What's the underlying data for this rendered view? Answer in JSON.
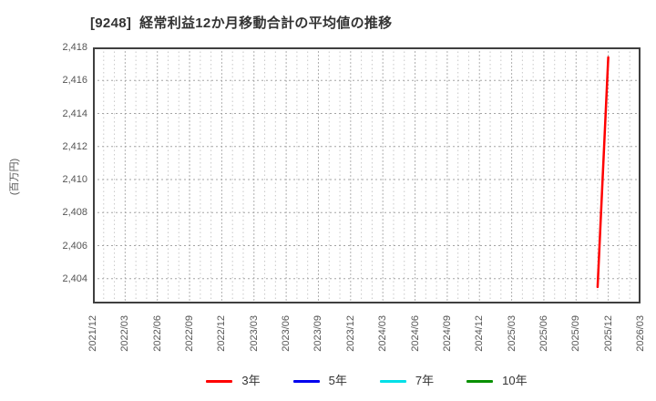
{
  "title": "[9248]  経常利益12か月移動合計の平均値の推移",
  "chart_data": {
    "type": "line",
    "title": "[9248]  経常利益12か月移動合計の平均値の推移",
    "xlabel": "",
    "ylabel": "(百万円)",
    "ylim": [
      2402.5,
      2418
    ],
    "y_ticks": [
      2404,
      2406,
      2408,
      2410,
      2412,
      2414,
      2416,
      2418
    ],
    "y_tick_labels": [
      "2,404",
      "2,406",
      "2,408",
      "2,410",
      "2,412",
      "2,414",
      "2,416",
      "2,418"
    ],
    "x_tick_labels": [
      "2021/12",
      "2022/03",
      "2022/06",
      "2022/09",
      "2022/12",
      "2023/03",
      "2023/06",
      "2023/09",
      "2023/12",
      "2024/03",
      "2024/06",
      "2024/09",
      "2024/12",
      "2025/03",
      "2025/06",
      "2025/09",
      "2025/12",
      "2026/03"
    ],
    "x_axis": {
      "start": "2021/12",
      "end": "2026/03",
      "months_total": 51,
      "tick_interval_months": 3,
      "grid_interval_months": 1
    },
    "grid": true,
    "legend_position": "bottom",
    "series": [
      {
        "name": "3年",
        "color": "#ff0000",
        "points": [
          {
            "date": "2025/11",
            "month_index": 47,
            "value": 2403.5
          },
          {
            "date": "2025/12",
            "month_index": 48,
            "value": 2417.4
          }
        ]
      },
      {
        "name": "5年",
        "color": "#0000ee",
        "points": []
      },
      {
        "name": "7年",
        "color": "#00e0e8",
        "points": []
      },
      {
        "name": "10年",
        "color": "#089000",
        "points": []
      }
    ],
    "style": {
      "border_color": "#3f3f3f",
      "h_grid_color": "#a5a5a5",
      "v_grid_minor_color": "#c8c8c8",
      "v_grid_major_color": "#b0b0b0"
    }
  }
}
